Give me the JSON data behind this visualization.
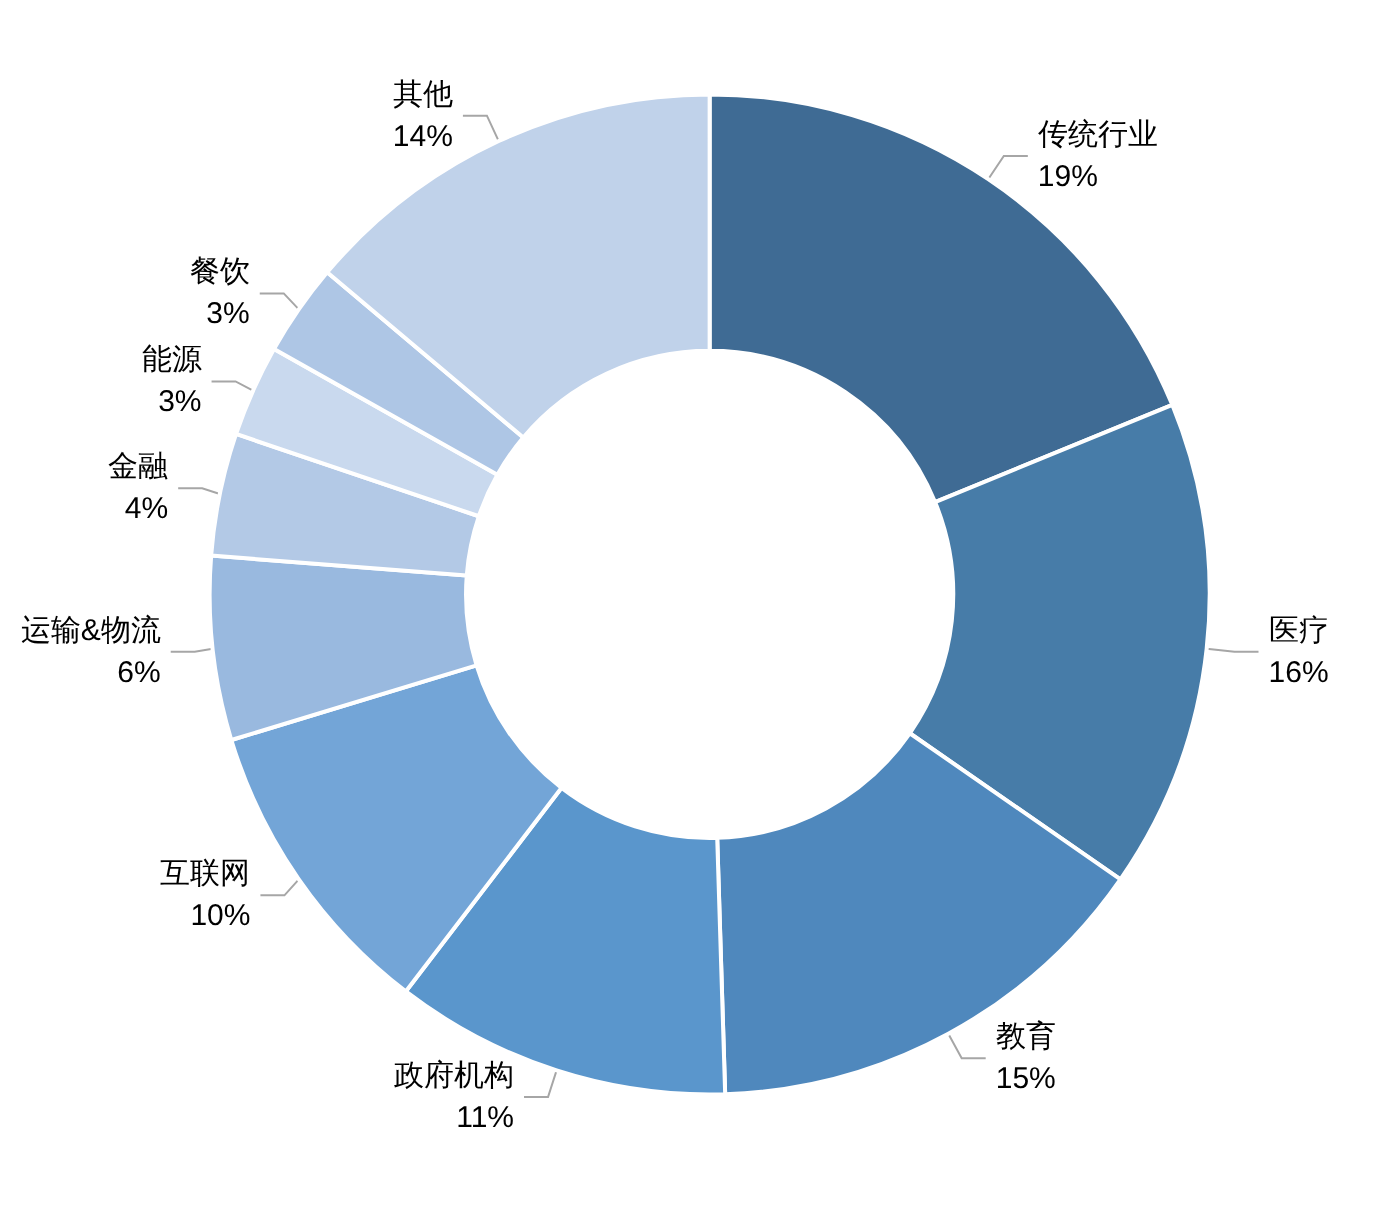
{
  "chart_data": {
    "type": "donut",
    "categories": [
      "传统行业",
      "医疗",
      "教育",
      "政府机构",
      "互联网",
      "运输&物流",
      "金融",
      "能源",
      "餐饮",
      "其他"
    ],
    "values": [
      19,
      16,
      15,
      11,
      10,
      6,
      4,
      3,
      3,
      14
    ],
    "value_labels": [
      "19%",
      "16%",
      "15%",
      "11%",
      "10%",
      "6%",
      "4%",
      "3%",
      "3%",
      "14%"
    ],
    "colors": [
      "#3f6b94",
      "#477ca8",
      "#4f88bd",
      "#5a96cc",
      "#73a5d7",
      "#99b9df",
      "#b3c9e6",
      "#c9d9ee",
      "#aec6e5",
      "#c0d2ea"
    ],
    "legend": false
  }
}
